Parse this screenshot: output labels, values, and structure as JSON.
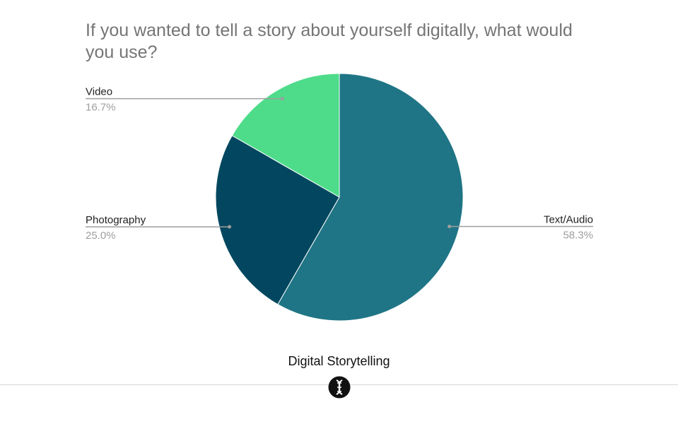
{
  "chart_data": {
    "type": "pie",
    "title": "If you wanted to tell a story about yourself digitally, what would you use?",
    "slices": [
      {
        "label": "Text/Audio",
        "value": 58.3,
        "display": "58.3%",
        "color": "#1f7585"
      },
      {
        "label": "Photography",
        "value": 25.0,
        "display": "25.0%",
        "color": "#02475f"
      },
      {
        "label": "Video",
        "value": 16.7,
        "display": "16.7%",
        "color": "#4edc8a"
      }
    ],
    "start_angle_deg": 0,
    "direction": "clockwise",
    "legend": "none",
    "label_style": "callout"
  },
  "footer": {
    "name": "Digital Storytelling",
    "logo_icon": "dna-helix-logo"
  }
}
